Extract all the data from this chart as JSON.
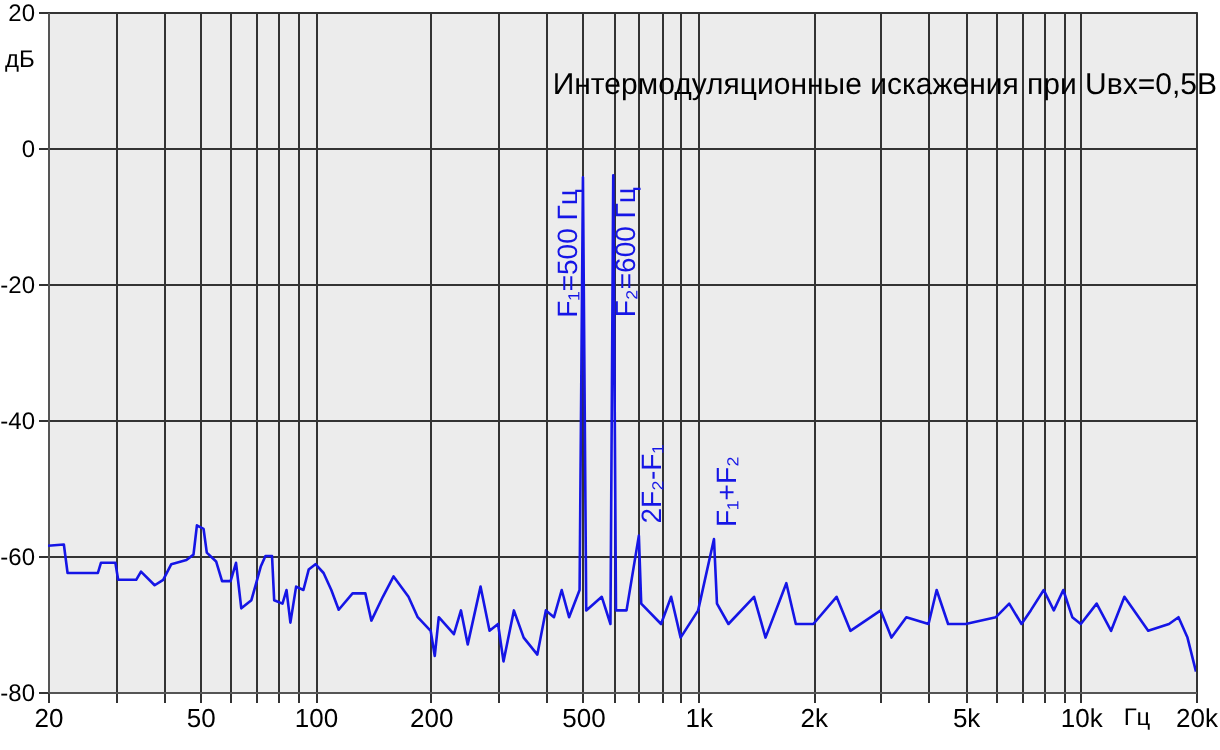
{
  "chart_data": {
    "type": "line",
    "title": "Интермодуляционные искажения при Uвх=0,5В",
    "xlabel": "Гц",
    "ylabel": "дБ",
    "log": "x",
    "grid": true,
    "marker": "none",
    "line_style": "solid",
    "xlim": [
      20,
      20000
    ],
    "ylim": [
      -80,
      20
    ],
    "xticks": [
      20,
      {
        "value": 30,
        "label": null
      },
      {
        "value": 40,
        "label": null
      },
      50,
      {
        "value": 60,
        "label": null
      },
      {
        "value": 70,
        "label": null
      },
      {
        "value": 80,
        "label": null
      },
      {
        "value": 90,
        "label": null
      },
      100,
      200,
      {
        "value": 300,
        "label": null
      },
      {
        "value": 400,
        "label": null
      },
      500,
      {
        "value": 600,
        "label": null
      },
      {
        "value": 700,
        "label": null
      },
      {
        "value": 800,
        "label": null
      },
      {
        "value": 900,
        "label": null
      },
      {
        "value": 1000,
        "label": "1k"
      },
      {
        "value": 2000,
        "label": "2k"
      },
      {
        "value": 3000,
        "label": null
      },
      {
        "value": 4000,
        "label": null
      },
      {
        "value": 5000,
        "label": "5k"
      },
      {
        "value": 6000,
        "label": null
      },
      {
        "value": 7000,
        "label": null
      },
      {
        "value": 8000,
        "label": null
      },
      {
        "value": 9000,
        "label": null
      },
      {
        "value": 10000,
        "label": "10k"
      },
      {
        "value": 20000,
        "label": "20k"
      }
    ],
    "yticks": [
      -80,
      -60,
      -40,
      -20,
      0,
      20
    ],
    "x": [
      20,
      22,
      22.5,
      27,
      27.5,
      30,
      30.5,
      34,
      35,
      38,
      40,
      42,
      46,
      48,
      49,
      51,
      52,
      55,
      57,
      60,
      62,
      64,
      68,
      70,
      72,
      74,
      77,
      78,
      82,
      84,
      86,
      89,
      93,
      96,
      100,
      105,
      110,
      115,
      125,
      135,
      140,
      150,
      160,
      175,
      185,
      200,
      205,
      210,
      230,
      240,
      250,
      270,
      285,
      300,
      310,
      330,
      350,
      380,
      400,
      420,
      440,
      460,
      490,
      500,
      510,
      560,
      590,
      600,
      610,
      650,
      700,
      710,
      800,
      850,
      900,
      1000,
      1100,
      1120,
      1200,
      1400,
      1500,
      1700,
      1800,
      2000,
      2300,
      2500,
      3000,
      3200,
      3500,
      4000,
      4200,
      4500,
      5000,
      6000,
      6500,
      7000,
      7400,
      8000,
      8500,
      9000,
      9500,
      10000,
      11000,
      12000,
      13000,
      15000,
      17000,
      18000,
      19000,
      20000
    ],
    "series": [
      {
        "color": "#1515e6",
        "values": [
          -58.5,
          -58.3,
          -62.5,
          -62.5,
          -61,
          -61,
          -63.5,
          -63.5,
          -62.3,
          -64.3,
          -63.5,
          -61.2,
          -60.6,
          -59.8,
          -55.5,
          -56,
          -59.5,
          -60.8,
          -63.7,
          -63.7,
          -61,
          -67.7,
          -66.5,
          -64,
          -61.5,
          -60,
          -60,
          -66.5,
          -67,
          -65,
          -69.8,
          -64.5,
          -65,
          -62,
          -61.2,
          -62.5,
          -65,
          -67.9,
          -65.5,
          -65.5,
          -69.5,
          -66,
          -63,
          -66,
          -69,
          -71,
          -74.7,
          -69,
          -71.5,
          -68,
          -73,
          -64.5,
          -71,
          -70,
          -75.5,
          -68,
          -72,
          -74.5,
          -68,
          -69,
          -65,
          -69,
          -65,
          -4.3,
          -68,
          -66,
          -70,
          -4,
          -68,
          -68,
          -57,
          -67,
          -70,
          -66,
          -72,
          -68,
          -57.5,
          -67,
          -70,
          -66,
          -72,
          -64,
          -70,
          -70,
          -66,
          -71,
          -68,
          -72,
          -69,
          -70,
          -65,
          -70,
          -70,
          -69,
          -67,
          -70,
          -68,
          -65,
          -68,
          -65,
          -69,
          -70,
          -67,
          -71,
          -66,
          -71,
          -70,
          -69,
          -72,
          -77
        ]
      }
    ],
    "annotations": [
      {
        "text": "F₁=500 Гц",
        "x": 500,
        "y": -4.3
      },
      {
        "text": "F₂=600 Гц",
        "x": 600,
        "y": -4
      },
      {
        "text": "2F₂-F₁",
        "x": 700,
        "y": -57
      },
      {
        "text": "F₁+F₂",
        "x": 1100,
        "y": -57.5
      }
    ]
  }
}
